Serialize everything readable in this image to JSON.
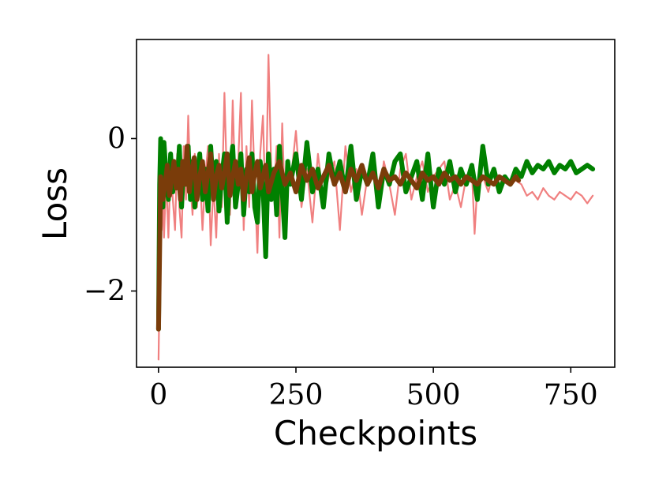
{
  "chart_data": {
    "type": "line",
    "xlabel": "Checkpoints",
    "ylabel": "Loss",
    "xlim": [
      -40,
      830
    ],
    "ylim": [
      -3.0,
      1.3
    ],
    "x_ticks": [
      0,
      250,
      500,
      750
    ],
    "x_tick_labels": [
      "0",
      "250",
      "500",
      "750"
    ],
    "y_ticks": [
      -2,
      0
    ],
    "y_tick_labels": [
      "−2",
      "0"
    ],
    "grid": false,
    "legend": null,
    "series": [
      {
        "color": "#f08080",
        "style": "thin",
        "x": [
          0,
          2,
          4,
          6,
          8,
          10,
          14,
          18,
          22,
          26,
          30,
          34,
          38,
          42,
          46,
          50,
          54,
          58,
          62,
          66,
          70,
          75,
          80,
          85,
          90,
          95,
          100,
          105,
          110,
          115,
          120,
          125,
          130,
          135,
          140,
          145,
          150,
          155,
          160,
          165,
          170,
          175,
          180,
          185,
          190,
          195,
          200,
          205,
          210,
          215,
          220,
          225,
          230,
          235,
          240,
          250,
          260,
          270,
          280,
          290,
          300,
          310,
          320,
          330,
          340,
          350,
          360,
          370,
          380,
          390,
          400,
          410,
          420,
          430,
          440,
          450,
          460,
          470,
          480,
          490,
          500,
          510,
          520,
          530,
          540,
          550,
          560,
          570,
          575,
          580,
          590,
          600,
          610,
          620,
          630,
          640,
          650,
          660,
          670,
          680,
          690,
          700,
          710,
          720,
          730,
          740,
          750,
          760,
          770,
          780,
          790
        ],
        "y": [
          -2.9,
          -1.9,
          -0.9,
          -1.2,
          -0.7,
          -1.3,
          -0.5,
          -1.3,
          -0.3,
          -0.8,
          -1.2,
          -0.2,
          -0.9,
          -1.3,
          -0.1,
          -0.8,
          0.3,
          -0.6,
          -1.0,
          -0.2,
          -0.9,
          -0.4,
          -1.2,
          -0.5,
          -0.1,
          -1.4,
          -0.6,
          -1.3,
          -0.2,
          -0.9,
          0.6,
          -0.7,
          -1.0,
          0.5,
          -0.8,
          -0.3,
          0.6,
          -1.2,
          -0.1,
          -0.9,
          0.5,
          -0.6,
          -1.5,
          -0.2,
          0.3,
          -1.0,
          1.1,
          -0.4,
          -0.7,
          -0.1,
          -1.3,
          0.2,
          -0.9,
          -0.3,
          -0.6,
          0.1,
          -0.9,
          -0.4,
          -1.1,
          -0.2,
          -0.8,
          -0.5,
          -0.3,
          -1.2,
          -0.1,
          -0.7,
          -0.4,
          -1.0,
          -0.5,
          -0.2,
          -0.9,
          -0.3,
          -0.6,
          -1.0,
          -0.4,
          -0.2,
          -0.8,
          -0.5,
          -0.3,
          -0.7,
          -0.5,
          -0.4,
          -0.3,
          -0.8,
          -0.6,
          -0.9,
          -0.5,
          -0.4,
          -1.25,
          -0.6,
          -0.5,
          -0.7,
          -0.4,
          -0.6,
          -0.5,
          -0.6,
          -0.55,
          -0.6,
          -0.75,
          -0.7,
          -0.8,
          -0.65,
          -0.75,
          -0.8,
          -0.7,
          -0.75,
          -0.8,
          -0.7,
          -0.75,
          -0.85,
          -0.75
        ]
      },
      {
        "color": "#008000",
        "style": "thick",
        "x": [
          0,
          2,
          4,
          6,
          8,
          10,
          14,
          18,
          22,
          26,
          30,
          34,
          38,
          42,
          46,
          50,
          54,
          58,
          62,
          66,
          70,
          75,
          80,
          85,
          90,
          95,
          100,
          105,
          110,
          115,
          120,
          125,
          130,
          135,
          140,
          145,
          150,
          155,
          160,
          165,
          170,
          175,
          180,
          185,
          190,
          195,
          200,
          205,
          210,
          215,
          220,
          225,
          230,
          235,
          240,
          250,
          260,
          270,
          280,
          290,
          300,
          310,
          320,
          330,
          340,
          350,
          360,
          370,
          380,
          390,
          400,
          410,
          420,
          430,
          440,
          450,
          460,
          470,
          480,
          490,
          500,
          510,
          520,
          530,
          540,
          550,
          560,
          570,
          580,
          590,
          600,
          610,
          620,
          630,
          640,
          650,
          660,
          670,
          680,
          690,
          700,
          710,
          720,
          730,
          740,
          750,
          760,
          770,
          780,
          790
        ],
        "y": [
          -2.5,
          -0.6,
          0.0,
          -0.7,
          -0.9,
          -0.05,
          -0.5,
          -0.8,
          -0.2,
          -0.7,
          -0.4,
          -0.6,
          -0.1,
          -0.9,
          -0.3,
          -0.6,
          -0.1,
          -0.8,
          -0.3,
          -0.9,
          -0.5,
          -0.2,
          -0.8,
          -0.4,
          -0.95,
          -0.1,
          -0.7,
          -0.3,
          -0.95,
          -0.5,
          -0.2,
          -1.1,
          -0.4,
          -0.1,
          -0.9,
          -0.6,
          -0.2,
          -1.0,
          -0.4,
          -0.7,
          -0.2,
          -0.9,
          -1.1,
          -0.3,
          -0.6,
          -1.55,
          -0.2,
          -0.8,
          -0.4,
          -1.0,
          -0.1,
          -0.7,
          -1.3,
          -0.3,
          -0.6,
          -0.2,
          -0.8,
          -0.05,
          -0.7,
          -0.4,
          -0.9,
          -0.2,
          -0.6,
          -0.3,
          -0.7,
          -0.1,
          -0.8,
          -0.4,
          -0.6,
          -0.2,
          -0.9,
          -0.4,
          -0.6,
          -0.3,
          -0.2,
          -0.7,
          -0.5,
          -0.3,
          -0.8,
          -0.2,
          -0.9,
          -0.4,
          -0.6,
          -0.3,
          -0.7,
          -0.4,
          -0.6,
          -0.35,
          -0.8,
          -0.1,
          -0.6,
          -0.4,
          -0.7,
          -0.5,
          -0.6,
          -0.4,
          -0.5,
          -0.3,
          -0.45,
          -0.35,
          -0.4,
          -0.3,
          -0.45,
          -0.35,
          -0.4,
          -0.3,
          -0.45,
          -0.4,
          -0.35,
          -0.4
        ]
      },
      {
        "color": "#7a3c0a",
        "style": "thick",
        "x": [
          0,
          4,
          8,
          12,
          16,
          20,
          24,
          28,
          32,
          36,
          40,
          44,
          48,
          52,
          56,
          60,
          65,
          70,
          75,
          80,
          85,
          90,
          95,
          100,
          105,
          110,
          115,
          120,
          125,
          130,
          135,
          140,
          145,
          150,
          155,
          160,
          165,
          170,
          175,
          180,
          185,
          190,
          195,
          200,
          210,
          220,
          230,
          240,
          250,
          260,
          270,
          280,
          290,
          300,
          310,
          320,
          330,
          340,
          350,
          360,
          370,
          380,
          390,
          400,
          410,
          420,
          430,
          440,
          450,
          460,
          470,
          480,
          490,
          500,
          510,
          520,
          530,
          540,
          550,
          560,
          570,
          580,
          590,
          600,
          610,
          620,
          630,
          640,
          650,
          655
        ],
        "y": [
          -2.5,
          -0.5,
          -0.8,
          -0.6,
          -0.35,
          -0.75,
          -0.5,
          -0.3,
          -0.65,
          -0.4,
          -0.8,
          -0.3,
          -0.6,
          -0.1,
          -0.7,
          -0.45,
          -0.25,
          -0.8,
          -0.5,
          -0.3,
          -0.7,
          -0.45,
          -0.2,
          -0.8,
          -0.5,
          -0.35,
          -0.65,
          -0.45,
          -0.2,
          -0.75,
          -0.5,
          -0.3,
          -0.6,
          -0.4,
          -0.8,
          -0.5,
          -0.25,
          -0.7,
          -0.45,
          -0.3,
          -0.65,
          -0.5,
          -0.35,
          -0.7,
          -0.45,
          -0.3,
          -0.6,
          -0.45,
          -0.7,
          -0.35,
          -0.55,
          -0.4,
          -0.65,
          -0.5,
          -0.35,
          -0.6,
          -0.45,
          -0.7,
          -0.4,
          -0.55,
          -0.35,
          -0.6,
          -0.45,
          -0.65,
          -0.4,
          -0.55,
          -0.5,
          -0.6,
          -0.45,
          -0.55,
          -0.65,
          -0.45,
          -0.55,
          -0.5,
          -0.6,
          -0.45,
          -0.55,
          -0.5,
          -0.6,
          -0.5,
          -0.55,
          -0.6,
          -0.5,
          -0.55,
          -0.6,
          -0.5,
          -0.55,
          -0.6,
          -0.5,
          -0.55
        ]
      }
    ]
  }
}
